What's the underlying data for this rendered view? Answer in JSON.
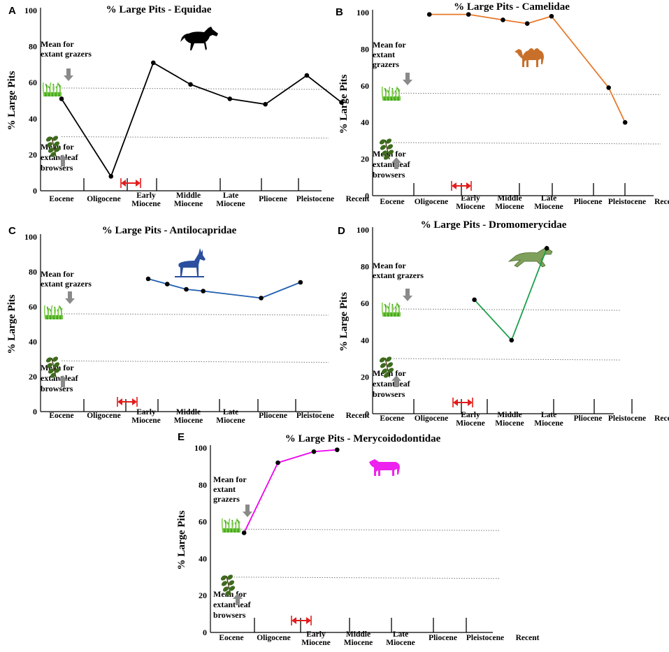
{
  "chart_data": [
    {
      "panel": "A",
      "type": "line",
      "title": "% Large Pits - Equidae",
      "ylabel": "% Large Pits",
      "ylim": [
        0,
        100
      ],
      "yticks": [
        0,
        20,
        40,
        60,
        80,
        100
      ],
      "categories": [
        "Eocene",
        "Oligocene",
        "Early Miocene",
        "Middle Miocene",
        "Late Miocene",
        "Pliocene",
        "Pleistocene",
        "Recent"
      ],
      "x": [
        0,
        1.17,
        2.17,
        3.05,
        3.98,
        4.82,
        5.8,
        6.62
      ],
      "values": [
        51,
        8,
        71,
        59,
        51,
        48,
        64,
        49
      ],
      "line_color": "#000000",
      "grazer_mean": 57,
      "browser_mean": 30,
      "grazer_label": [
        "Mean for",
        "extant grazers"
      ],
      "browser_label": [
        "Mean for",
        "extant leaf",
        "browsers"
      ],
      "animal": "horse-silhouette",
      "animal_color": "#000000"
    },
    {
      "panel": "B",
      "type": "line",
      "title": "% Large Pits - Camelidae",
      "ylabel": "% Large Pits",
      "ylim": [
        0,
        100
      ],
      "yticks": [
        0,
        20,
        40,
        60,
        80,
        100
      ],
      "categories": [
        "Eocene",
        "Oligocene",
        "Early Miocene",
        "Middle Miocene",
        "Late Miocene",
        "Pliocene",
        "Pleistocene",
        "Recent"
      ],
      "x": [
        0.95,
        1.95,
        2.83,
        3.45,
        4.07,
        5.53,
        5.95
      ],
      "values": [
        99,
        99,
        96,
        94,
        98,
        59,
        40
      ],
      "line_color": "#e8782a",
      "grazer_mean": 56,
      "browser_mean": 29,
      "grazer_label": [
        "Mean for",
        "extant",
        "grazers"
      ],
      "browser_label": [
        "Mean for",
        "extant leaf",
        "browsers"
      ],
      "animal": "camel-silhouette",
      "animal_color": "#c8702a"
    },
    {
      "panel": "C",
      "type": "line",
      "title": "% Large Pits - Antilocapridae",
      "ylabel": "% Large Pits",
      "ylim": [
        0,
        100
      ],
      "yticks": [
        0,
        20,
        40,
        60,
        80,
        100
      ],
      "categories": [
        "Eocene",
        "Oligocene",
        "Early Miocene",
        "Middle Miocene",
        "Late Miocene",
        "Pliocene",
        "Pleistocene",
        "Recent"
      ],
      "x": [
        2.05,
        2.5,
        2.95,
        3.35,
        4.72,
        5.65
      ],
      "values": [
        76,
        73,
        70,
        69,
        65,
        74
      ],
      "line_color": "#1f5fb0",
      "grazer_mean": 56,
      "browser_mean": 29,
      "grazer_label": [
        "Mean for",
        "extant grazers"
      ],
      "browser_label": [
        "Mean for",
        "extant leaf",
        "browsers"
      ],
      "animal": "pronghorn-silhouette",
      "animal_color": "#2a4f9e"
    },
    {
      "panel": "D",
      "type": "line",
      "title": "% Large Pits - Dromomerycidae",
      "ylabel": "% Large Pits",
      "ylim": [
        0,
        100
      ],
      "yticks": [
        0,
        20,
        40,
        60,
        80,
        100
      ],
      "categories": [
        "Eocene",
        "Oligocene",
        "Early Miocene",
        "Middle Miocene",
        "Late Miocene",
        "Pliocene",
        "Pleistocene",
        "Recent"
      ],
      "x": [
        2.1,
        3.05,
        3.95
      ],
      "values": [
        62,
        40,
        90
      ],
      "line_color": "#1aa04a",
      "grazer_mean": 57,
      "browser_mean": 30,
      "grazer_label": [
        "Mean for",
        "extant grazers"
      ],
      "browser_label": [
        "Mean for",
        "extant leaf",
        "browsers"
      ],
      "animal": "dromomerycid-illustration",
      "animal_color": "#7fa05a"
    },
    {
      "panel": "E",
      "type": "line",
      "title": "% Large Pits - Merycoidodontidae",
      "ylabel": "% Large Pits",
      "ylim": [
        0,
        100
      ],
      "yticks": [
        0,
        20,
        40,
        60,
        80,
        100
      ],
      "categories": [
        "Eocene",
        "Oligocene",
        "Early Miocene",
        "Middle Miocene",
        "Late Miocene",
        "Pliocene",
        "Pleistocene",
        "Recent"
      ],
      "x": [
        0.3,
        1.1,
        1.95,
        2.5
      ],
      "values": [
        54,
        92,
        98,
        99
      ],
      "line_color": "#ee00ee",
      "grazer_mean": 56,
      "browser_mean": 30,
      "grazer_label": [
        "Mean for",
        "extant",
        "grazers"
      ],
      "browser_label": [
        "Mean for",
        "extant leaf",
        "browsers"
      ],
      "animal": "oreodont-silhouette",
      "animal_color": "#ee22ee"
    }
  ]
}
